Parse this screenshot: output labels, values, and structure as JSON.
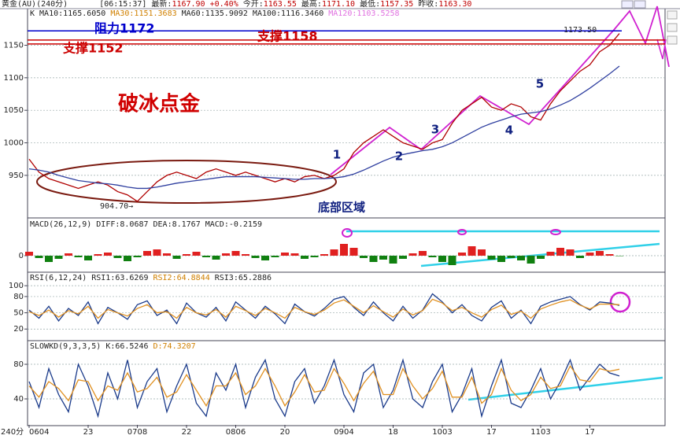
{
  "header": {
    "instrument": "黄金(AU)(240分)",
    "time": "[06:15:37]",
    "quote": [
      {
        "label": "最新:",
        "value": "1167.90"
      },
      {
        "label": "",
        "value": "+0.40%"
      },
      {
        "label": "今开:",
        "value": "1163.55"
      },
      {
        "label": "最高:",
        "value": "1171.10"
      },
      {
        "label": "最低:",
        "value": "1157.35"
      },
      {
        "label": "昨收:",
        "value": "1163.30"
      }
    ]
  },
  "chart_data": [
    {
      "type": "line",
      "title": "K",
      "legend": [
        {
          "text": "MA10:1165.6050",
          "color": "#222222"
        },
        {
          "text": "MA30:1151.3683",
          "color": "#d08000"
        },
        {
          "text": "MA60:1135.9092",
          "color": "#222222"
        },
        {
          "text": "MA100:1116.3460",
          "color": "#222222"
        },
        {
          "text": "MA120:1103.5258",
          "color": "#e070e0"
        }
      ],
      "series": [
        {
          "color": "#b00000",
          "values": [
            975,
            955,
            945,
            940,
            935,
            930,
            935,
            940,
            935,
            925,
            920,
            910,
            925,
            940,
            950,
            955,
            950,
            945,
            955,
            960,
            955,
            950,
            955,
            950,
            945,
            940,
            945,
            940,
            948,
            950,
            945,
            950,
            960,
            985,
            1000,
            1010,
            1020,
            1010,
            1000,
            995,
            990,
            1000,
            1005,
            1030,
            1050,
            1060,
            1070,
            1055,
            1050,
            1060,
            1055,
            1040,
            1035,
            1060,
            1080,
            1095,
            1110,
            1120,
            1140,
            1150,
            1168
          ]
        },
        {
          "color": "#3040a0",
          "values": [
            960,
            958,
            955,
            950,
            946,
            942,
            940,
            938,
            937,
            935,
            932,
            930,
            930,
            932,
            935,
            938,
            940,
            942,
            944,
            946,
            948,
            948,
            948,
            948,
            947,
            946,
            945,
            944,
            944,
            945,
            945,
            946,
            948,
            952,
            958,
            965,
            972,
            978,
            982,
            985,
            988,
            990,
            994,
            1000,
            1008,
            1016,
            1024,
            1030,
            1035,
            1040,
            1044,
            1046,
            1048,
            1052,
            1058,
            1065,
            1074,
            1084,
            1095,
            1106,
            1118
          ]
        }
      ],
      "ylim": [
        887,
        1205
      ],
      "yticks": [
        950,
        1000,
        1050,
        1100,
        1150
      ],
      "levels": [
        {
          "text": "阻力1172",
          "value": 1172,
          "color": "#0000cc"
        },
        {
          "text": "支撑1158",
          "value": 1158,
          "color": "#cc0000"
        },
        {
          "text": "支撑1152",
          "value": 1152,
          "color": "#cc0000"
        }
      ],
      "annotations": {
        "headline": "破冰点金",
        "zone": "底部区域",
        "low": "904.70→",
        "high": "1173.50",
        "waves": [
          "1",
          "2",
          "3",
          "4",
          "5"
        ]
      }
    },
    {
      "type": "bar",
      "title": "MACD(26,12,9)",
      "legend": [
        {
          "text": "DIFF:8.0687",
          "color": "#222222"
        },
        {
          "text": "DEA:8.1767",
          "color": "#222222"
        },
        {
          "text": "MACD:-0.2159",
          "color": "#222222"
        }
      ],
      "values": [
        5,
        -3,
        -8,
        -4,
        3,
        -2,
        -6,
        2,
        4,
        -3,
        -7,
        -2,
        6,
        8,
        3,
        -4,
        2,
        5,
        -2,
        -5,
        3,
        6,
        2,
        -3,
        -6,
        -2,
        4,
        3,
        -4,
        -2,
        2,
        8,
        15,
        10,
        -3,
        -8,
        -5,
        -10,
        -4,
        3,
        6,
        -2,
        -8,
        -12,
        4,
        12,
        8,
        -5,
        -8,
        -3,
        -6,
        -10,
        -4,
        5,
        10,
        8,
        -3,
        4,
        6,
        2,
        -0.2
      ],
      "ylim": [
        -20,
        45
      ],
      "yticks": [
        0
      ]
    },
    {
      "type": "line",
      "title": "RSI(6,12,24)",
      "legend": [
        {
          "text": "RSI1:63.6269",
          "color": "#222222"
        },
        {
          "text": "RSI2:64.8844",
          "color": "#d08000"
        },
        {
          "text": "RSI3:65.2886",
          "color": "#222222"
        }
      ],
      "series": [
        {
          "color": "#1a3a8a",
          "values": [
            55,
            40,
            62,
            35,
            58,
            45,
            70,
            30,
            60,
            50,
            38,
            65,
            72,
            45,
            55,
            30,
            68,
            50,
            42,
            60,
            35,
            70,
            55,
            40,
            62,
            48,
            30,
            66,
            52,
            44,
            58,
            75,
            80,
            60,
            45,
            70,
            50,
            35,
            62,
            40,
            55,
            85,
            70,
            50,
            65,
            45,
            35,
            60,
            72,
            40,
            55,
            30,
            62,
            70,
            75,
            80,
            65,
            55,
            70,
            68,
            63.6
          ]
        },
        {
          "color": "#e09020",
          "values": [
            52,
            45,
            55,
            42,
            54,
            48,
            62,
            40,
            56,
            50,
            44,
            58,
            65,
            50,
            52,
            40,
            60,
            50,
            46,
            56,
            42,
            62,
            54,
            45,
            58,
            50,
            40,
            60,
            52,
            47,
            55,
            68,
            74,
            62,
            50,
            63,
            52,
            42,
            57,
            46,
            54,
            75,
            68,
            54,
            60,
            50,
            42,
            56,
            64,
            47,
            53,
            40,
            57,
            64,
            70,
            74,
            64,
            57,
            66,
            66,
            64.9
          ]
        }
      ],
      "ylim": [
        0,
        122
      ],
      "yticks": [
        20,
        50,
        80,
        100
      ]
    },
    {
      "type": "line",
      "title": "SLOWKD(9,3,3,5)",
      "legend": [
        {
          "text": "K:66.5246",
          "color": "#222222"
        },
        {
          "text": "D:74.3207",
          "color": "#d08000"
        }
      ],
      "series": [
        {
          "color": "#1a3a8a",
          "values": [
            60,
            30,
            75,
            45,
            25,
            80,
            55,
            20,
            70,
            40,
            85,
            30,
            60,
            75,
            25,
            55,
            80,
            35,
            20,
            70,
            50,
            80,
            30,
            65,
            85,
            40,
            20,
            60,
            75,
            35,
            55,
            85,
            45,
            25,
            70,
            80,
            30,
            50,
            85,
            40,
            30,
            60,
            80,
            25,
            45,
            75,
            20,
            55,
            85,
            35,
            30,
            50,
            75,
            40,
            60,
            85,
            50,
            65,
            80,
            70,
            66.5
          ]
        },
        {
          "color": "#e09020",
          "values": [
            55,
            42,
            60,
            52,
            38,
            62,
            60,
            38,
            55,
            50,
            70,
            48,
            52,
            65,
            42,
            48,
            68,
            50,
            32,
            55,
            55,
            70,
            45,
            55,
            75,
            55,
            32,
            48,
            68,
            48,
            50,
            75,
            58,
            38,
            58,
            72,
            45,
            45,
            75,
            55,
            40,
            52,
            72,
            42,
            42,
            65,
            35,
            45,
            75,
            50,
            38,
            45,
            65,
            52,
            55,
            78,
            62,
            60,
            75,
            72,
            74.3
          ]
        }
      ],
      "ylim": [
        10,
        105.5
      ],
      "yticks": [
        40,
        80
      ],
      "x_label": "240分",
      "categories": [
        "0604",
        null,
        null,
        null,
        null,
        null,
        "23",
        null,
        null,
        null,
        null,
        "0708",
        null,
        null,
        null,
        null,
        "22",
        null,
        null,
        null,
        null,
        "0806",
        null,
        null,
        null,
        null,
        "20",
        null,
        null,
        null,
        null,
        null,
        "0904",
        null,
        null,
        null,
        null,
        "18",
        null,
        null,
        null,
        null,
        "1003",
        null,
        null,
        null,
        null,
        "17",
        null,
        null,
        null,
        null,
        "1103",
        null,
        null,
        null,
        null,
        "17",
        null,
        null,
        null
      ]
    }
  ]
}
